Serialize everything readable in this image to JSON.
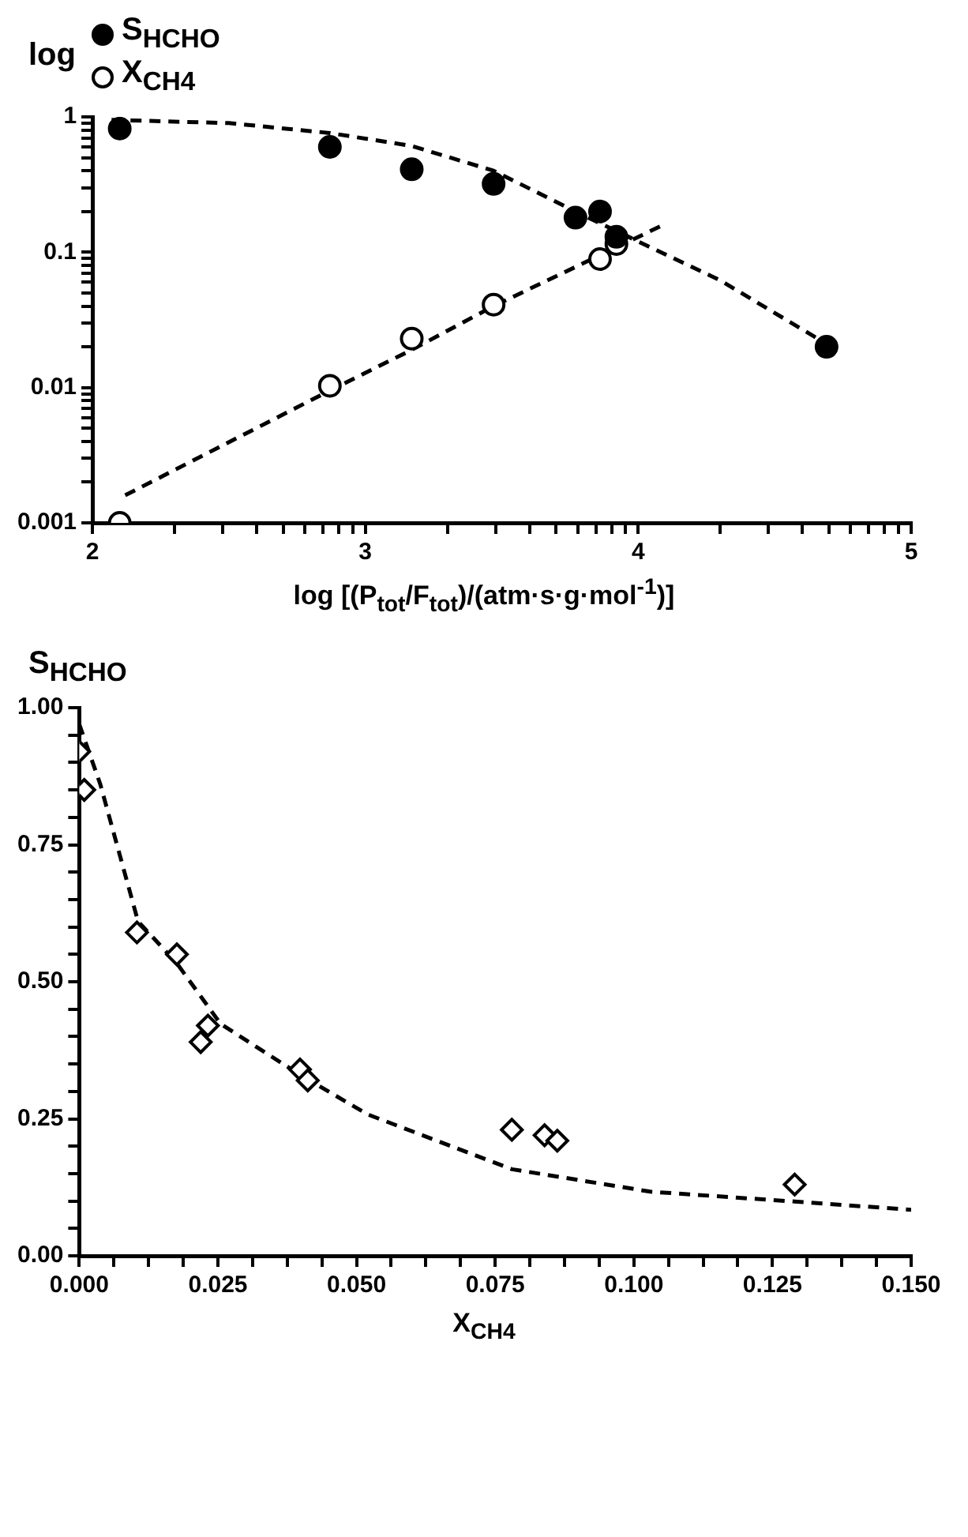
{
  "chart_data": [
    {
      "type": "scatter",
      "ylabel": "log",
      "xlabel": "log [(P$_{tot}$/F$_{tot}$)/(atm·s·g·mol$^{-1}$)]",
      "log": "y",
      "legend": "top left",
      "xlim": [
        2,
        5
      ],
      "ylim": [
        0.001,
        1
      ],
      "xticks": [
        2,
        {
          "value": 2.301,
          "label": null
        },
        {
          "value": 2.477,
          "label": null
        },
        {
          "value": 2.602,
          "label": null
        },
        {
          "value": 2.699,
          "label": null
        },
        {
          "value": 2.778,
          "label": null
        },
        {
          "value": 2.845,
          "label": null
        },
        {
          "value": 2.903,
          "label": null
        },
        {
          "value": 2.954,
          "label": null
        },
        3,
        {
          "value": 3.301,
          "label": null
        },
        {
          "value": 3.477,
          "label": null
        },
        {
          "value": 3.602,
          "label": null
        },
        {
          "value": 3.699,
          "label": null
        },
        {
          "value": 3.778,
          "label": null
        },
        {
          "value": 3.845,
          "label": null
        },
        {
          "value": 3.903,
          "label": null
        },
        {
          "value": 3.954,
          "label": null
        },
        4,
        {
          "value": 4.301,
          "label": null
        },
        {
          "value": 4.477,
          "label": null
        },
        {
          "value": 4.602,
          "label": null
        },
        {
          "value": 4.699,
          "label": null
        },
        {
          "value": 4.778,
          "label": null
        },
        {
          "value": 4.845,
          "label": null
        },
        {
          "value": 4.903,
          "label": null
        },
        {
          "value": 4.954,
          "label": null
        },
        5
      ],
      "yticks": [
        0.001,
        {
          "value": 0.002,
          "label": null
        },
        {
          "value": 0.003,
          "label": null
        },
        {
          "value": 0.004,
          "label": null
        },
        {
          "value": 0.005,
          "label": null
        },
        {
          "value": 0.006,
          "label": null
        },
        {
          "value": 0.007,
          "label": null
        },
        {
          "value": 0.008,
          "label": null
        },
        {
          "value": 0.009,
          "label": null
        },
        0.01,
        {
          "value": 0.02,
          "label": null
        },
        {
          "value": 0.03,
          "label": null
        },
        {
          "value": 0.04,
          "label": null
        },
        {
          "value": 0.05,
          "label": null
        },
        {
          "value": 0.06,
          "label": null
        },
        {
          "value": 0.07,
          "label": null
        },
        {
          "value": 0.08,
          "label": null
        },
        {
          "value": 0.09,
          "label": null
        },
        0.1,
        {
          "value": 0.2,
          "label": null
        },
        {
          "value": 0.3,
          "label": null
        },
        {
          "value": 0.4,
          "label": null
        },
        {
          "value": 0.5,
          "label": null
        },
        {
          "value": 0.6,
          "label": null
        },
        {
          "value": 0.7,
          "label": null
        },
        {
          "value": 0.8,
          "label": null
        },
        {
          "value": 0.9,
          "label": null
        },
        1
      ],
      "series": [
        {
          "name": "S$_{HCHO}$",
          "type": "scatter",
          "marker": "circle",
          "color": "#000000",
          "x": [
            2.1,
            2.87,
            3.17,
            3.47,
            3.77,
            3.86,
            3.92,
            4.69
          ],
          "values": [
            0.82,
            0.6,
            0.41,
            0.32,
            0.18,
            0.2,
            0.13,
            0.02
          ]
        },
        {
          "name": "X$_{CH4}$",
          "type": "scatter",
          "marker": "circle",
          "color": "#ffffff",
          "x": [
            2.1,
            2.87,
            3.17,
            3.47,
            3.86,
            3.92
          ],
          "values": [
            0.001,
            0.0103,
            0.023,
            0.041,
            0.089,
            0.115
          ]
        },
        {
          "type": "line",
          "line_style": "dashed",
          "marker": "none",
          "color": "#000000",
          "x": [
            2.07,
            2.5,
            2.87,
            3.17,
            3.47,
            3.77,
            4.0,
            4.3,
            4.69
          ],
          "values": [
            0.95,
            0.9,
            0.76,
            0.61,
            0.4,
            0.2,
            0.12,
            0.062,
            0.021
          ]
        },
        {
          "type": "line",
          "line_style": "dashed",
          "marker": "none",
          "color": "#000000",
          "x": [
            2.12,
            2.87,
            3.17,
            3.47,
            3.86,
            4.08
          ],
          "values": [
            0.0016,
            0.0095,
            0.019,
            0.04,
            0.095,
            0.155
          ]
        }
      ]
    },
    {
      "type": "scatter",
      "ylabel": "S$_{HCHO}$",
      "xlabel": "X$_{CH4}$",
      "legend": false,
      "xlim": [
        0,
        0.15
      ],
      "ylim": [
        0,
        1
      ],
      "xticks": [
        {
          "value": 0,
          "label": "0.000"
        },
        {
          "value": 0.00625,
          "label": null
        },
        {
          "value": 0.0125,
          "label": null
        },
        {
          "value": 0.01875,
          "label": null
        },
        0.025,
        {
          "value": 0.03125,
          "label": null
        },
        {
          "value": 0.0375,
          "label": null
        },
        {
          "value": 0.04375,
          "label": null
        },
        {
          "value": 0.05,
          "label": "0.050"
        },
        {
          "value": 0.05625,
          "label": null
        },
        {
          "value": 0.0625,
          "label": null
        },
        {
          "value": 0.06875,
          "label": null
        },
        0.075,
        {
          "value": 0.08125,
          "label": null
        },
        {
          "value": 0.0875,
          "label": null
        },
        {
          "value": 0.09375,
          "label": null
        },
        {
          "value": 0.1,
          "label": "0.100"
        },
        {
          "value": 0.10625,
          "label": null
        },
        {
          "value": 0.1125,
          "label": null
        },
        {
          "value": 0.11875,
          "label": null
        },
        0.125,
        {
          "value": 0.13125,
          "label": null
        },
        {
          "value": 0.1375,
          "label": null
        },
        {
          "value": 0.14375,
          "label": null
        },
        {
          "value": 0.15,
          "label": "0.150"
        }
      ],
      "yticks": [
        {
          "value": 0,
          "label": "0.00"
        },
        {
          "value": 0.05,
          "label": null
        },
        {
          "value": 0.1,
          "label": null
        },
        {
          "value": 0.15,
          "label": null
        },
        {
          "value": 0.2,
          "label": null
        },
        0.25,
        {
          "value": 0.3,
          "label": null
        },
        {
          "value": 0.35,
          "label": null
        },
        {
          "value": 0.4,
          "label": null
        },
        {
          "value": 0.45,
          "label": null
        },
        {
          "value": 0.5,
          "label": "0.50"
        },
        {
          "value": 0.55,
          "label": null
        },
        {
          "value": 0.6,
          "label": null
        },
        {
          "value": 0.65,
          "label": null
        },
        {
          "value": 0.7,
          "label": null
        },
        0.75,
        {
          "value": 0.8,
          "label": null
        },
        {
          "value": 0.85,
          "label": null
        },
        {
          "value": 0.9,
          "label": null
        },
        {
          "value": 0.95,
          "label": null
        },
        {
          "value": 1,
          "label": "1.00"
        }
      ],
      "series": [
        {
          "type": "scatter",
          "marker": "diamond",
          "color": "#ffffff",
          "x": [
            0.0,
            0.0009,
            0.0104,
            0.0176,
            0.0219,
            0.0232,
            0.0398,
            0.0412,
            0.078,
            0.0839,
            0.0862,
            0.129
          ],
          "values": [
            0.92,
            0.85,
            0.59,
            0.55,
            0.39,
            0.42,
            0.34,
            0.32,
            0.23,
            0.22,
            0.21,
            0.13
          ]
        },
        {
          "type": "line",
          "line_style": "dashed",
          "marker": "none",
          "color": "#000000",
          "x": [
            0.0,
            0.0038,
            0.0106,
            0.0175,
            0.0255,
            0.04,
            0.052,
            0.078,
            0.103,
            0.129,
            0.15
          ],
          "values": [
            0.97,
            0.86,
            0.61,
            0.535,
            0.423,
            0.329,
            0.258,
            0.158,
            0.117,
            0.099,
            0.084
          ]
        }
      ]
    }
  ]
}
